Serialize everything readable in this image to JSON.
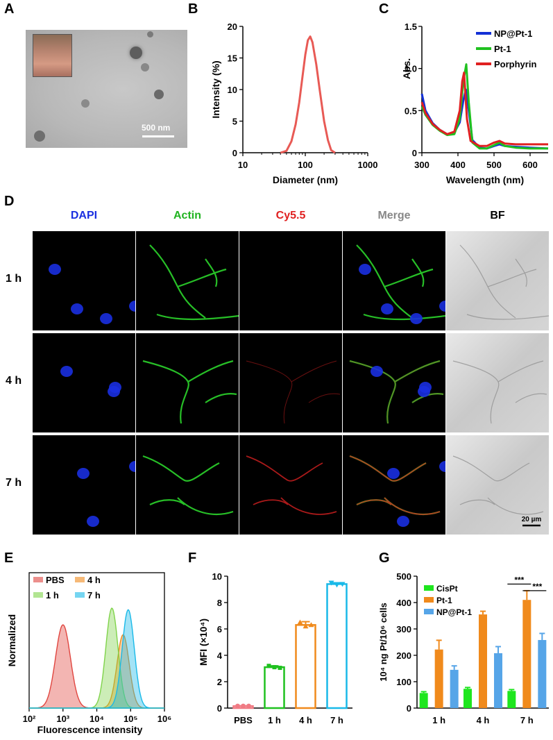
{
  "panel_letters": {
    "a": "A",
    "b": "B",
    "c": "C",
    "d": "D",
    "e": "E",
    "f": "F",
    "g": "G"
  },
  "colors": {
    "red": "#e0453f",
    "green": "#1fc11f",
    "blue": "#1330d6",
    "orange": "#f08a1c",
    "lightblue": "#56a5e8",
    "cyan": "#19b9e8"
  },
  "panel_a": {
    "scale_bar": "500 nm"
  },
  "panel_d": {
    "columns": [
      {
        "label": "DAPI",
        "color": "#1a2fe0"
      },
      {
        "label": "Actin",
        "color": "#1fb31f"
      },
      {
        "label": "Cy5.5",
        "color": "#e02020"
      },
      {
        "label": "Merge",
        "color": "#888888"
      },
      {
        "label": "BF",
        "color": "#000000"
      }
    ],
    "rows": [
      "1 h",
      "4 h",
      "7 h"
    ],
    "scale_bar": "20 µm"
  },
  "chart_data": [
    {
      "panel": "B",
      "type": "line",
      "xlabel": "Diameter (nm)",
      "ylabel": "Intensity (%)",
      "xscale": "log",
      "xlim": [
        10,
        1000
      ],
      "ylim": [
        0,
        20
      ],
      "xticks": [
        "10",
        "100",
        "1000"
      ],
      "yticks": [
        "0",
        "5",
        "10",
        "15",
        "20"
      ],
      "series": [
        {
          "color": "#e85a55",
          "x": [
            40,
            50,
            60,
            70,
            80,
            90,
            100,
            110,
            120,
            130,
            150,
            170,
            200,
            230,
            260,
            300
          ],
          "y": [
            0,
            0.3,
            1.8,
            4.5,
            8,
            12,
            15.5,
            17.8,
            18.4,
            17.5,
            14,
            10,
            5,
            2,
            0.4,
            0
          ]
        }
      ]
    },
    {
      "panel": "C",
      "type": "line",
      "xlabel": "Wavelength (nm)",
      "ylabel": "Abs.",
      "xlim": [
        300,
        650
      ],
      "ylim": [
        0,
        1.5
      ],
      "xticks": [
        "300",
        "400",
        "500",
        "600"
      ],
      "yticks": [
        "0",
        "0.5",
        "1.0",
        "1.5"
      ],
      "legend_position": "top-right",
      "series": [
        {
          "name": "NP@Pt-1",
          "color": "#1330d6",
          "x": [
            300,
            310,
            330,
            350,
            370,
            390,
            405,
            415,
            422,
            430,
            440,
            460,
            480,
            500,
            515,
            530,
            560,
            600,
            650
          ],
          "y": [
            0.7,
            0.5,
            0.35,
            0.27,
            0.22,
            0.24,
            0.36,
            0.62,
            0.75,
            0.5,
            0.15,
            0.06,
            0.05,
            0.08,
            0.1,
            0.08,
            0.07,
            0.06,
            0.05
          ]
        },
        {
          "name": "Pt-1",
          "color": "#1fc11f",
          "x": [
            300,
            310,
            330,
            350,
            370,
            390,
            405,
            415,
            423,
            430,
            440,
            460,
            480,
            500,
            515,
            530,
            560,
            600,
            650
          ],
          "y": [
            0.55,
            0.45,
            0.33,
            0.26,
            0.21,
            0.22,
            0.4,
            0.85,
            1.05,
            0.6,
            0.12,
            0.05,
            0.05,
            0.09,
            0.12,
            0.08,
            0.06,
            0.05,
            0.05
          ]
        },
        {
          "name": "Porphyrin",
          "color": "#e02020",
          "x": [
            300,
            310,
            330,
            350,
            370,
            390,
            405,
            412,
            417,
            425,
            435,
            460,
            480,
            500,
            515,
            530,
            560,
            600,
            650
          ],
          "y": [
            0.6,
            0.47,
            0.34,
            0.27,
            0.22,
            0.25,
            0.5,
            0.85,
            0.95,
            0.4,
            0.14,
            0.08,
            0.08,
            0.12,
            0.14,
            0.11,
            0.1,
            0.1,
            0.1
          ]
        }
      ]
    },
    {
      "panel": "E",
      "type": "area",
      "xlabel": "Fluorescence intensity",
      "ylabel": "Normalized",
      "xscale": "log",
      "xlim": [
        100,
        1000000
      ],
      "xticks": [
        "10²",
        "10³",
        "10⁴",
        "10⁵",
        "10⁶"
      ],
      "legend_position": "top-left",
      "series": [
        {
          "name": "PBS",
          "color": "#e0453f",
          "peak": 1000,
          "width": 0.22,
          "height": 1.0
        },
        {
          "name": "4 h",
          "color": "#f08a1c",
          "peak": 60000,
          "width": 0.18,
          "height": 0.88
        },
        {
          "name": "1 h",
          "color": "#7fd34a",
          "peak": 28000,
          "width": 0.18,
          "height": 1.2
        },
        {
          "name": "7 h",
          "color": "#19b9e8",
          "peak": 85000,
          "width": 0.18,
          "height": 1.18
        }
      ]
    },
    {
      "panel": "F",
      "type": "bar",
      "ylabel": "MFI (×10⁴)",
      "ylim": [
        0,
        10
      ],
      "yticks": [
        "0",
        "2",
        "4",
        "6",
        "8",
        "10"
      ],
      "categories": [
        "PBS",
        "1 h",
        "4 h",
        "7 h"
      ],
      "colors": [
        "#f07b84",
        "#1fc11f",
        "#f08a1c",
        "#19b9e8"
      ],
      "values": [
        0.15,
        3.1,
        6.3,
        9.4
      ],
      "errors": [
        0.02,
        0.1,
        0.25,
        0.1
      ],
      "points": [
        [
          0.15,
          0.15,
          0.15
        ],
        [
          3.2,
          3.1,
          3.05
        ],
        [
          6.5,
          6.2,
          6.3
        ],
        [
          9.5,
          9.35,
          9.4
        ]
      ]
    },
    {
      "panel": "G",
      "type": "bar",
      "ylabel": "10⁴ ng Pt/10⁶ cells",
      "ylim": [
        0,
        500
      ],
      "yticks": [
        "0",
        "100",
        "200",
        "300",
        "400",
        "500"
      ],
      "categories": [
        "1 h",
        "4 h",
        "7 h"
      ],
      "legend_position": "top-left",
      "series": [
        {
          "name": "CisPt",
          "color": "#1ee61e",
          "values": [
            57,
            73,
            65
          ],
          "errors": [
            5,
            5,
            5
          ]
        },
        {
          "name": "Pt-1",
          "color": "#f08a1c",
          "values": [
            222,
            355,
            410
          ],
          "errors": [
            35,
            12,
            35
          ]
        },
        {
          "name": "NP@Pt-1",
          "color": "#56a5e8",
          "values": [
            145,
            208,
            258
          ],
          "errors": [
            15,
            25,
            25
          ]
        }
      ],
      "significance": [
        "***",
        "***"
      ]
    }
  ]
}
